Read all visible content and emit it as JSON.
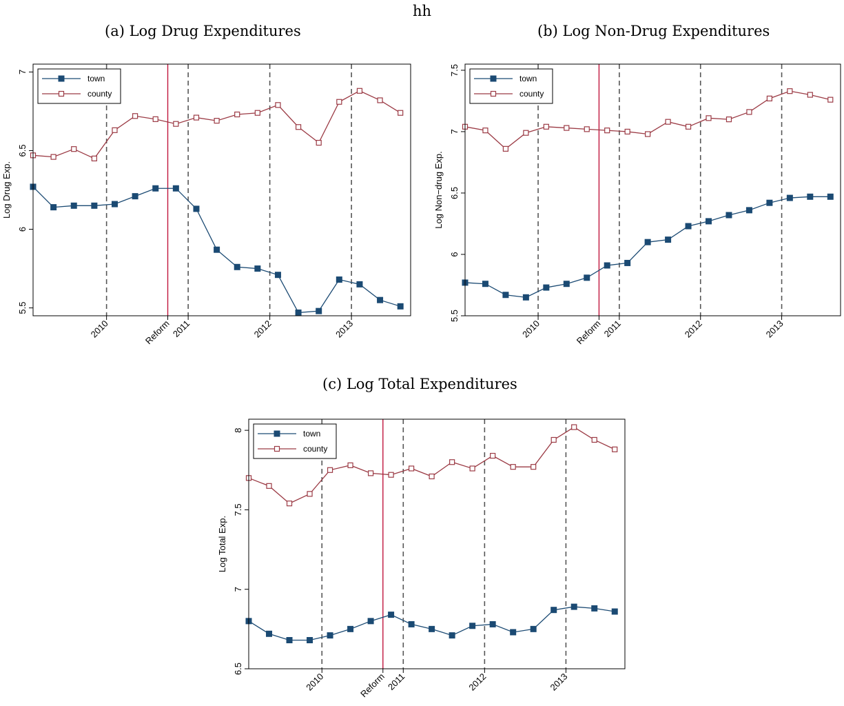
{
  "header": {
    "title": "hh"
  },
  "captions": {
    "a": "(a) Log Drug Expenditures",
    "b": "(b) Log Non-Drug Expenditures",
    "c": "(c) Log Total Expenditures"
  },
  "colors": {
    "town": "#1b4a73",
    "county": "#9b3a44",
    "reform": "#c0143c",
    "dashed": "#555555"
  },
  "chart_data": [
    {
      "id": "a",
      "type": "line",
      "ylabel": "Log Drug Exp.",
      "xlabel": "",
      "ylim": [
        5.45,
        7.05
      ],
      "yticks": [
        5.5,
        6,
        6.5,
        7
      ],
      "ytick_labels": [
        "5.5",
        "6",
        "6.5",
        "7"
      ],
      "xlim": [
        0,
        18.5
      ],
      "x": [
        0,
        1,
        2,
        3,
        4,
        5,
        6,
        7,
        8,
        9,
        10,
        11,
        12,
        13,
        14,
        15,
        16,
        17,
        18
      ],
      "xticks": [
        {
          "x": 3.6,
          "label": "2010",
          "line": "dashed"
        },
        {
          "x": 6.6,
          "label": "Reform",
          "line": "solid"
        },
        {
          "x": 7.6,
          "label": "2011",
          "line": "dashed"
        },
        {
          "x": 11.6,
          "label": "2012",
          "line": "dashed"
        },
        {
          "x": 15.6,
          "label": "2013",
          "line": "dashed"
        }
      ],
      "series": [
        {
          "name": "town",
          "marker": "filled-square",
          "values": [
            6.27,
            6.14,
            6.15,
            6.15,
            6.16,
            6.21,
            6.26,
            6.26,
            6.13,
            5.87,
            5.76,
            5.75,
            5.71,
            5.47,
            5.48,
            5.68,
            5.65,
            5.55,
            5.51
          ]
        },
        {
          "name": "county",
          "marker": "hollow-square",
          "values": [
            6.47,
            6.46,
            6.51,
            6.45,
            6.63,
            6.72,
            6.7,
            6.67,
            6.71,
            6.69,
            6.73,
            6.74,
            6.79,
            6.65,
            6.55,
            6.81,
            6.88,
            6.82,
            6.74
          ]
        }
      ],
      "legend": "top-left"
    },
    {
      "id": "b",
      "type": "line",
      "ylabel": "Log Non−drug Exp.",
      "xlabel": "",
      "ylim": [
        5.5,
        7.55
      ],
      "yticks": [
        5.5,
        6,
        6.5,
        7,
        7.5
      ],
      "ytick_labels": [
        "5.5",
        "6",
        "6.5",
        "7",
        "7.5"
      ],
      "xlim": [
        0,
        18.5
      ],
      "x": [
        0,
        1,
        2,
        3,
        4,
        5,
        6,
        7,
        8,
        9,
        10,
        11,
        12,
        13,
        14,
        15,
        16,
        17,
        18
      ],
      "xticks": [
        {
          "x": 3.6,
          "label": "2010",
          "line": "dashed"
        },
        {
          "x": 6.6,
          "label": "Reform",
          "line": "solid"
        },
        {
          "x": 7.6,
          "label": "2011",
          "line": "dashed"
        },
        {
          "x": 11.6,
          "label": "2012",
          "line": "dashed"
        },
        {
          "x": 15.6,
          "label": "2013",
          "line": "dashed"
        }
      ],
      "series": [
        {
          "name": "town",
          "marker": "filled-square",
          "values": [
            5.77,
            5.76,
            5.67,
            5.65,
            5.73,
            5.76,
            5.81,
            5.91,
            5.93,
            6.1,
            6.12,
            6.23,
            6.27,
            6.32,
            6.36,
            6.42,
            6.46,
            6.47,
            6.47
          ]
        },
        {
          "name": "county",
          "marker": "hollow-square",
          "values": [
            7.04,
            7.01,
            6.86,
            6.99,
            7.04,
            7.03,
            7.02,
            7.01,
            7.0,
            6.98,
            7.08,
            7.04,
            7.11,
            7.1,
            7.16,
            7.27,
            7.33,
            7.3,
            7.26
          ]
        }
      ],
      "legend": "top-left"
    },
    {
      "id": "c",
      "type": "line",
      "ylabel": "Log Total Exp.",
      "xlabel": "",
      "ylim": [
        6.5,
        8.07
      ],
      "yticks": [
        6.5,
        7,
        7.5,
        8
      ],
      "ytick_labels": [
        "6.5",
        "7",
        "7.5",
        "8"
      ],
      "xlim": [
        0,
        18.5
      ],
      "x": [
        0,
        1,
        2,
        3,
        4,
        5,
        6,
        7,
        8,
        9,
        10,
        11,
        12,
        13,
        14,
        15,
        16,
        17,
        18
      ],
      "xticks": [
        {
          "x": 3.6,
          "label": "2010",
          "line": "dashed"
        },
        {
          "x": 6.6,
          "label": "Reform",
          "line": "solid"
        },
        {
          "x": 7.6,
          "label": "2011",
          "line": "dashed"
        },
        {
          "x": 11.6,
          "label": "2012",
          "line": "dashed"
        },
        {
          "x": 15.6,
          "label": "2013",
          "line": "dashed"
        }
      ],
      "series": [
        {
          "name": "town",
          "marker": "filled-square",
          "values": [
            6.8,
            6.72,
            6.68,
            6.68,
            6.71,
            6.75,
            6.8,
            6.84,
            6.78,
            6.75,
            6.71,
            6.77,
            6.78,
            6.73,
            6.75,
            6.87,
            6.89,
            6.88,
            6.86
          ]
        },
        {
          "name": "county",
          "marker": "hollow-square",
          "values": [
            7.7,
            7.65,
            7.54,
            7.6,
            7.75,
            7.78,
            7.73,
            7.72,
            7.76,
            7.71,
            7.8,
            7.76,
            7.84,
            7.77,
            7.77,
            7.94,
            8.02,
            7.94,
            7.88
          ]
        }
      ],
      "legend": "top-left"
    }
  ]
}
